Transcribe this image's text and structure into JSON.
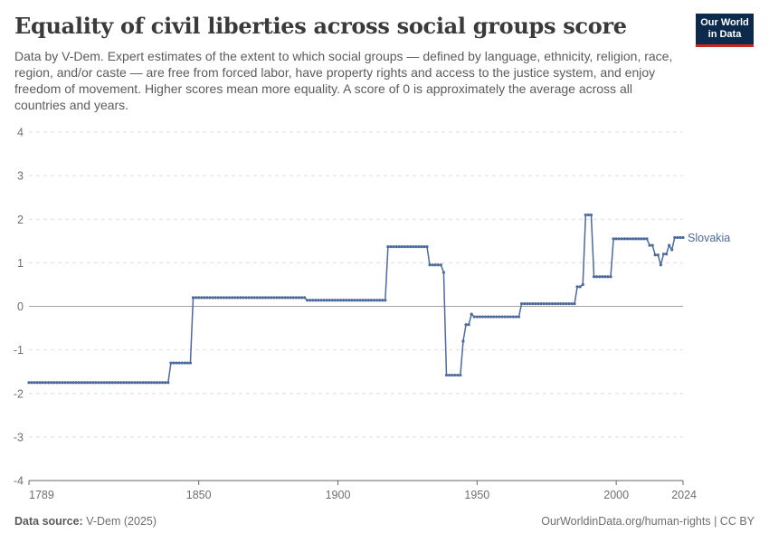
{
  "header": {
    "title": "Equality of civil liberties across social groups score",
    "subtitle": "Data by V-Dem. Expert estimates of the extent to which social groups — defined by language, ethnicity, religion, race, region, and/or caste — are free from forced labor, have property rights and access to the justice system, and enjoy freedom of movement. Higher scores mean more equality. A score of 0 is approximately the average across all countries and years.",
    "logo_line1": "Our World",
    "logo_line2": "in Data"
  },
  "footer": {
    "source_label": "Data source:",
    "source_value": "V-Dem (2025)",
    "right": "OurWorldinData.org/human-rights | CC BY"
  },
  "colors": {
    "series": "#4c6a9c",
    "grid": "#dddddd",
    "zero_line": "#a1a1a1",
    "text": "#6e6e6e"
  },
  "chart_data": {
    "type": "line",
    "title": "Equality of civil liberties across social groups score",
    "xlabel": "",
    "ylabel": "",
    "xlim": [
      1789,
      2024
    ],
    "ylim": [
      -4,
      4
    ],
    "x_ticks": [
      1789,
      1850,
      1900,
      1950,
      2000,
      2024
    ],
    "y_ticks": [
      -4,
      -3,
      -2,
      -1,
      0,
      1,
      2,
      3,
      4
    ],
    "grid": true,
    "legend": "end-of-line label",
    "series": [
      {
        "name": "Slovakia",
        "segments": [
          {
            "from": 1789,
            "to": 1839,
            "value": -1.75
          },
          {
            "from": 1840,
            "to": 1847,
            "value": -1.3
          },
          {
            "from": 1848,
            "to": 1888,
            "value": 0.2
          },
          {
            "from": 1889,
            "to": 1917,
            "value": 0.14
          },
          {
            "from": 1918,
            "to": 1932,
            "value": 1.37
          },
          {
            "from": 1933,
            "to": 1937,
            "value": 0.95
          },
          {
            "from": 1938,
            "to": 1938,
            "value": 0.78
          },
          {
            "from": 1939,
            "to": 1944,
            "value": -1.58
          },
          {
            "from": 1945,
            "to": 1945,
            "value": -0.8
          },
          {
            "from": 1946,
            "to": 1947,
            "value": -0.42
          },
          {
            "from": 1948,
            "to": 1948,
            "value": -0.18
          },
          {
            "from": 1949,
            "to": 1965,
            "value": -0.24
          },
          {
            "from": 1966,
            "to": 1985,
            "value": 0.06
          },
          {
            "from": 1986,
            "to": 1987,
            "value": 0.45
          },
          {
            "from": 1988,
            "to": 1988,
            "value": 0.5
          },
          {
            "from": 1989,
            "to": 1991,
            "value": 2.1
          },
          {
            "from": 1992,
            "to": 1998,
            "value": 0.68
          },
          {
            "from": 1999,
            "to": 2011,
            "value": 1.55
          },
          {
            "from": 2012,
            "to": 2013,
            "value": 1.4
          },
          {
            "from": 2014,
            "to": 2015,
            "value": 1.18
          },
          {
            "from": 2016,
            "to": 2016,
            "value": 0.95
          },
          {
            "from": 2017,
            "to": 2018,
            "value": 1.2
          },
          {
            "from": 2019,
            "to": 2019,
            "value": 1.4
          },
          {
            "from": 2020,
            "to": 2020,
            "value": 1.3
          },
          {
            "from": 2021,
            "to": 2024,
            "value": 1.58
          }
        ]
      }
    ]
  }
}
